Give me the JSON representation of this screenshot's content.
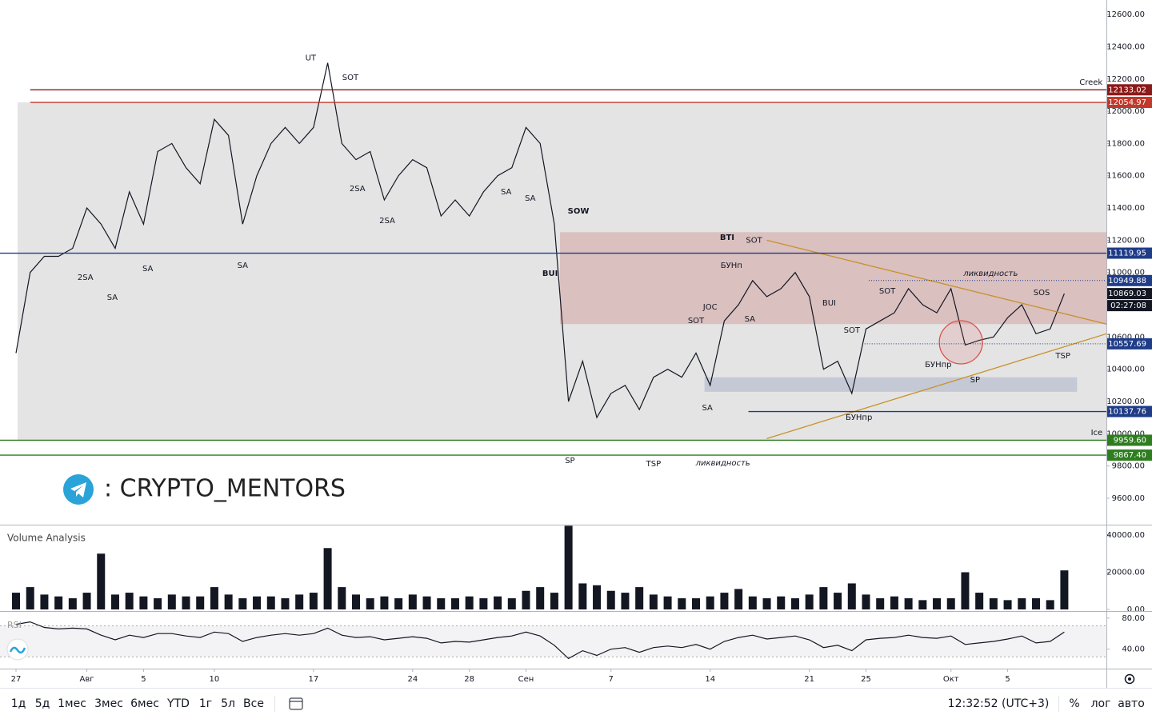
{
  "chart_data": [
    {
      "type": "line",
      "name": "price",
      "x": [
        0,
        1,
        2,
        3,
        4,
        5,
        6,
        7,
        8,
        9,
        10,
        11,
        12,
        13,
        14,
        15,
        16,
        17,
        18,
        19,
        20,
        21,
        22,
        23,
        24,
        25,
        26,
        27,
        28,
        29,
        30,
        31,
        32,
        33,
        34,
        35,
        36,
        37,
        38,
        39,
        40,
        41,
        42,
        43,
        44,
        45,
        46,
        47,
        48,
        49,
        50,
        51,
        52,
        53,
        54,
        55,
        56,
        57,
        58,
        59,
        60,
        61,
        62,
        63,
        64,
        65,
        66,
        67,
        68,
        69,
        70,
        71,
        72,
        73,
        74
      ],
      "values": [
        10500,
        11000,
        11100,
        11100,
        11150,
        11400,
        11300,
        11150,
        11500,
        11300,
        11750,
        11800,
        11650,
        11550,
        11950,
        11850,
        11300,
        11600,
        11800,
        11900,
        11800,
        11900,
        12300,
        11800,
        11700,
        11750,
        11450,
        11600,
        11700,
        11650,
        11350,
        11450,
        11350,
        11500,
        11600,
        11650,
        11900,
        11800,
        11300,
        10200,
        10450,
        10100,
        10250,
        10300,
        10150,
        10350,
        10400,
        10350,
        10500,
        10300,
        10700,
        10800,
        10950,
        10850,
        10900,
        11000,
        10850,
        10400,
        10450,
        10250,
        10650,
        10700,
        10750,
        10900,
        10800,
        10750,
        10900,
        10550,
        10580,
        10600,
        10720,
        10800,
        10620,
        10650,
        10869.03
      ],
      "color": "#131722",
      "xlim": [
        -1.13,
        76.97
      ],
      "xticks": [
        {
          "value": 0,
          "label": "27"
        },
        {
          "value": 5,
          "label": "Авг"
        },
        {
          "value": 9,
          "label": "5"
        },
        {
          "value": 14,
          "label": "10"
        },
        {
          "value": 21,
          "label": "17"
        },
        {
          "value": 28,
          "label": "24"
        },
        {
          "value": 32,
          "label": "28"
        },
        {
          "value": 36,
          "label": "Сен"
        },
        {
          "value": 42,
          "label": "7"
        },
        {
          "value": 49,
          "label": "14"
        },
        {
          "value": 56,
          "label": "21"
        },
        {
          "value": 60,
          "label": "25"
        },
        {
          "value": 66,
          "label": "Окт"
        },
        {
          "value": 70,
          "label": "5"
        }
      ],
      "ylim": [
        9441,
        12690
      ],
      "yticks": [
        {
          "value": 9600,
          "label": "9600.00"
        },
        {
          "value": 9800,
          "label": "9800.00"
        },
        {
          "value": 10000,
          "label": "10000.00"
        },
        {
          "value": 10200,
          "label": "10200.00"
        },
        {
          "value": 10400,
          "label": "10400.00"
        },
        {
          "value": 10600,
          "label": "10600.00"
        },
        {
          "value": 10800,
          "label": "10800.00"
        },
        {
          "value": 11000,
          "label": "11000.00"
        },
        {
          "value": 11200,
          "label": "11200.00"
        },
        {
          "value": 11400,
          "label": "11400.00"
        },
        {
          "value": 11600,
          "label": "11600.00"
        },
        {
          "value": 11800,
          "label": "11800.00"
        },
        {
          "value": 12000,
          "label": "12000.00"
        },
        {
          "value": 12200,
          "label": "12200.00"
        },
        {
          "value": 12400,
          "label": "12400.00"
        },
        {
          "value": 12600,
          "label": "12600.00"
        }
      ],
      "zones": [
        {
          "from": 0.11,
          "lo": 9959.6,
          "hi": 12054.97,
          "color": "#e4e4e4"
        },
        {
          "from": 38.4,
          "lo": 10680,
          "hi": 11250,
          "color": "rgba(200,110,110,0.3)"
        },
        {
          "from": 48.6,
          "to": 74.9,
          "lo": 10260,
          "hi": 10350,
          "color": "rgba(150,160,190,0.4)"
        }
      ],
      "levels": [
        {
          "value": 12133.02,
          "label": "12133.02",
          "color": "#8b1a1a",
          "style": "solid",
          "from": 1.0
        },
        {
          "value": 12054.97,
          "label": "12054.97",
          "color": "#c0392b",
          "style": "solid",
          "from": 1.0
        },
        {
          "value": 11119.95,
          "label": "11119.95",
          "color": "#1f3c88",
          "style": "solid"
        },
        {
          "value": 10949.88,
          "label": "10949.88",
          "color": "#1f3c88",
          "style": "dotted",
          "from": 60.2
        },
        {
          "value": 10869.03,
          "label": "10869.03",
          "color": "#131722",
          "style": "none"
        },
        {
          "value": 10557.69,
          "label": "10557.69",
          "color": "#1f3c88",
          "style": "dotted",
          "from": 59.9
        },
        {
          "value": 10137.76,
          "label": "10137.76",
          "color": "#1f3c88",
          "style": "solid",
          "from": 51.7
        },
        {
          "value": 9959.6,
          "label": "9959.60",
          "color": "#2e7d1f",
          "style": "solid"
        },
        {
          "value": 9867.4,
          "label": "9867.40",
          "color": "#2e7d1f",
          "style": "solid"
        }
      ],
      "countdown": "02:27:08",
      "trendlines": [
        {
          "points": [
            [
              53,
              11200
            ],
            [
              76.97,
              10680
            ]
          ],
          "color": "#c8922a"
        },
        {
          "points": [
            [
              53,
              9970
            ],
            [
              76.97,
              10620
            ]
          ],
          "color": "#c8922a"
        }
      ],
      "circle": {
        "x": 66.7,
        "y": 10567,
        "color": "#d9534f"
      },
      "annotations": [
        {
          "text": "UT",
          "x": 20.8,
          "y": 12330
        },
        {
          "text": "SOT",
          "x": 23.6,
          "y": 12210
        },
        {
          "text": "2SA",
          "x": 24.1,
          "y": 11519
        },
        {
          "text": "2SA",
          "x": 26.2,
          "y": 11320
        },
        {
          "text": "2SA",
          "x": 4.9,
          "y": 10968
        },
        {
          "text": "SA",
          "x": 6.8,
          "y": 10844
        },
        {
          "text": "SA",
          "x": 9.3,
          "y": 11023
        },
        {
          "text": "SA",
          "x": 16.0,
          "y": 11043
        },
        {
          "text": "SA",
          "x": 34.6,
          "y": 11499
        },
        {
          "text": "SA",
          "x": 36.3,
          "y": 11460
        },
        {
          "text": "SOW",
          "x": 39.7,
          "y": 11380,
          "bold": true
        },
        {
          "text": "BUI",
          "x": 37.7,
          "y": 10993,
          "bold": true
        },
        {
          "text": "BTI",
          "x": 50.2,
          "y": 11216,
          "bold": true
        },
        {
          "text": "SOT",
          "x": 52.1,
          "y": 11200
        },
        {
          "text": "БУНп",
          "x": 50.5,
          "y": 11043
        },
        {
          "text": "JOC",
          "x": 49.0,
          "y": 10785
        },
        {
          "text": "SA",
          "x": 51.8,
          "y": 10710
        },
        {
          "text": "SOT",
          "x": 48.0,
          "y": 10700
        },
        {
          "text": "SA",
          "x": 48.8,
          "y": 10160
        },
        {
          "text": "BUI",
          "x": 57.4,
          "y": 10810
        },
        {
          "text": "SOT",
          "x": 59.0,
          "y": 10641
        },
        {
          "text": "SOT",
          "x": 61.5,
          "y": 10884
        },
        {
          "text": "ликвидность",
          "x": 68.8,
          "y": 10993,
          "italic": true
        },
        {
          "text": "SOS",
          "x": 72.4,
          "y": 10874
        },
        {
          "text": "TSP",
          "x": 73.9,
          "y": 10482
        },
        {
          "text": "БУНпр",
          "x": 65.1,
          "y": 10428
        },
        {
          "text": "SP",
          "x": 67.7,
          "y": 10334
        },
        {
          "text": "БУНпр",
          "x": 59.5,
          "y": 10101
        },
        {
          "text": "SP",
          "x": 39.1,
          "y": 9833
        },
        {
          "text": "TSP",
          "x": 45.0,
          "y": 9813
        },
        {
          "text": "ликвидность",
          "x": 49.9,
          "y": 9818,
          "italic": true
        },
        {
          "text": "Creek",
          "x": 76.7,
          "y": 12180,
          "align": "end"
        },
        {
          "text": "Ice",
          "x": 76.7,
          "y": 10007,
          "align": "end"
        }
      ],
      "watermark": ": CRYPTO_MENTORS"
    },
    {
      "type": "bar",
      "title": "Volume Analysis",
      "color": "#131722",
      "values": [
        9000,
        12000,
        8000,
        7000,
        6000,
        9000,
        30000,
        8000,
        9000,
        7000,
        6000,
        8000,
        7000,
        7000,
        12000,
        8000,
        6000,
        7000,
        7000,
        6000,
        8000,
        9000,
        33000,
        12000,
        8000,
        6000,
        7000,
        6000,
        8000,
        7000,
        6000,
        6000,
        7000,
        6000,
        7000,
        6000,
        10000,
        12000,
        9000,
        45000,
        14000,
        13000,
        10000,
        9000,
        12000,
        8000,
        7000,
        6000,
        6000,
        7000,
        9000,
        11000,
        7000,
        6000,
        7000,
        6000,
        8000,
        12000,
        9000,
        14000,
        8000,
        6000,
        7000,
        6000,
        5000,
        6000,
        6000,
        20000,
        9000,
        6000,
        5000,
        6000,
        6000,
        5000,
        21000
      ],
      "ylim": [
        -1290,
        43870
      ],
      "yticks": [
        {
          "value": 0,
          "label": "0.00"
        },
        {
          "value": 20000,
          "label": "20000.00"
        },
        {
          "value": 40000,
          "label": "40000.00"
        }
      ]
    },
    {
      "type": "line",
      "title": "RSI",
      "color": "#131722",
      "values": [
        72,
        75,
        68,
        66,
        67,
        66,
        58,
        52,
        58,
        55,
        60,
        60,
        57,
        55,
        62,
        60,
        50,
        55,
        58,
        60,
        58,
        60,
        67,
        58,
        55,
        56,
        52,
        54,
        56,
        54,
        48,
        50,
        49,
        52,
        55,
        57,
        62,
        57,
        45,
        28,
        38,
        32,
        40,
        42,
        36,
        42,
        44,
        42,
        46,
        40,
        50,
        55,
        58,
        53,
        55,
        57,
        52,
        42,
        45,
        38,
        52,
        54,
        55,
        58,
        55,
        54,
        57,
        46,
        48,
        50,
        53,
        57,
        48,
        50,
        62
      ],
      "ylim": [
        15,
        88
      ],
      "yticks": [
        {
          "value": 40,
          "label": "40.00"
        },
        {
          "value": 80,
          "label": "80.00"
        }
      ],
      "band": [
        30,
        70
      ]
    }
  ],
  "toolbar": {
    "ranges": [
      "1д",
      "5д",
      "1мес",
      "3мес",
      "6мес",
      "YTD",
      "1г",
      "5л",
      "Все"
    ],
    "time": "12:32:52 (UTC+3)",
    "scale": [
      "%",
      "лог",
      "авто"
    ]
  }
}
